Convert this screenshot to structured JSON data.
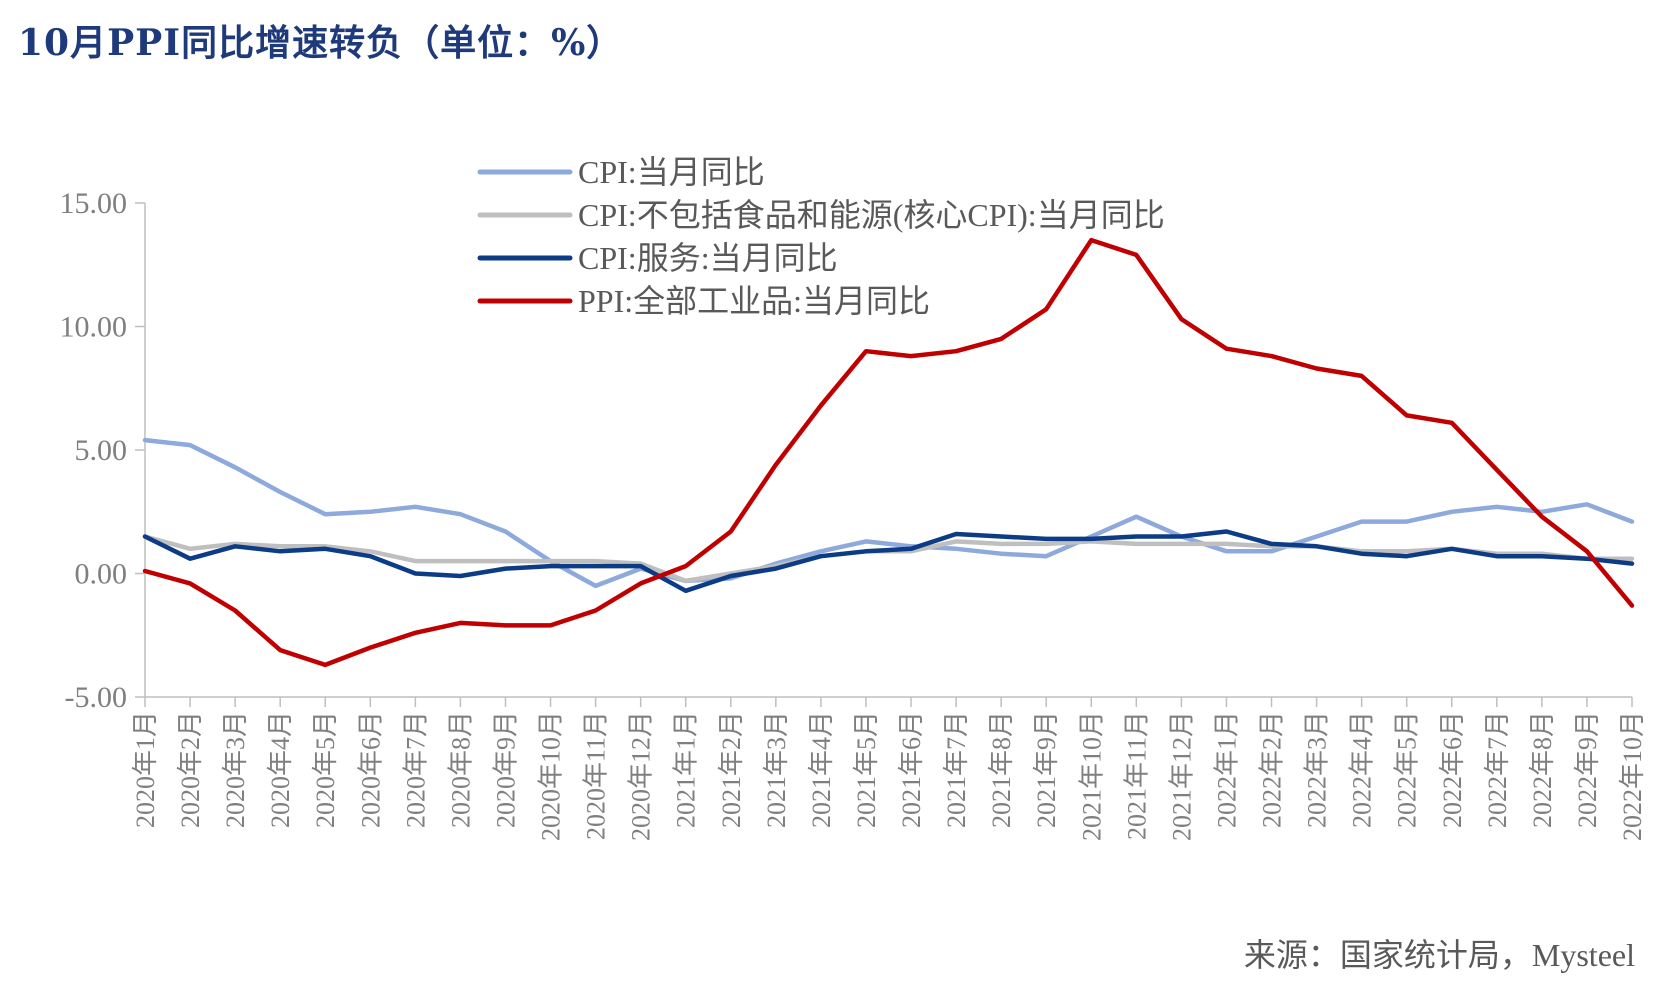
{
  "source": "来源：国家统计局，Mysteel",
  "chart_data": {
    "type": "line",
    "title": "10月PPI同比增速转负（单位：%）",
    "xlabel": "",
    "ylabel": "",
    "ylim": [
      -5,
      15
    ],
    "yticks": [
      -5,
      0,
      5,
      10,
      15
    ],
    "ytick_labels": [
      "-5.00",
      "0.00",
      "5.00",
      "10.00",
      "15.00"
    ],
    "grid": false,
    "legend_position": "top-center",
    "categories": [
      "2020年1月",
      "2020年2月",
      "2020年3月",
      "2020年4月",
      "2020年5月",
      "2020年6月",
      "2020年7月",
      "2020年8月",
      "2020年9月",
      "2020年10月",
      "2020年11月",
      "2020年12月",
      "2021年1月",
      "2021年2月",
      "2021年3月",
      "2021年4月",
      "2021年5月",
      "2021年6月",
      "2021年7月",
      "2021年8月",
      "2021年9月",
      "2021年10月",
      "2021年11月",
      "2021年12月",
      "2022年1月",
      "2022年2月",
      "2022年3月",
      "2022年4月",
      "2022年5月",
      "2022年6月",
      "2022年7月",
      "2022年8月",
      "2022年9月",
      "2022年10月"
    ],
    "series": [
      {
        "name": "CPI:当月同比",
        "color": "#8ea9db",
        "values": [
          5.4,
          5.2,
          4.3,
          3.3,
          2.4,
          2.5,
          2.7,
          2.4,
          1.7,
          0.5,
          -0.5,
          0.2,
          -0.3,
          -0.2,
          0.4,
          0.9,
          1.3,
          1.1,
          1.0,
          0.8,
          0.7,
          1.5,
          2.3,
          1.5,
          0.9,
          0.9,
          1.5,
          2.1,
          2.1,
          2.5,
          2.7,
          2.5,
          2.8,
          2.1
        ]
      },
      {
        "name": "CPI:不包括食品和能源(核心CPI):当月同比",
        "color": "#bfbfbf",
        "values": [
          1.5,
          1.0,
          1.2,
          1.1,
          1.1,
          0.9,
          0.5,
          0.5,
          0.5,
          0.5,
          0.5,
          0.4,
          -0.3,
          0.0,
          0.3,
          0.7,
          0.9,
          0.9,
          1.3,
          1.2,
          1.2,
          1.3,
          1.2,
          1.2,
          1.2,
          1.1,
          1.1,
          0.9,
          0.9,
          1.0,
          0.8,
          0.8,
          0.6,
          0.6
        ]
      },
      {
        "name": "CPI:服务:当月同比",
        "color": "#0d3c87",
        "values": [
          1.5,
          0.6,
          1.1,
          0.9,
          1.0,
          0.7,
          0.0,
          -0.1,
          0.2,
          0.3,
          0.3,
          0.3,
          -0.7,
          -0.1,
          0.2,
          0.7,
          0.9,
          1.0,
          1.6,
          1.5,
          1.4,
          1.4,
          1.5,
          1.5,
          1.7,
          1.2,
          1.1,
          0.8,
          0.7,
          1.0,
          0.7,
          0.7,
          0.6,
          0.4
        ]
      },
      {
        "name": "PPI:全部工业品:当月同比",
        "color": "#c00000",
        "values": [
          0.1,
          -0.4,
          -1.5,
          -3.1,
          -3.7,
          -3.0,
          -2.4,
          -2.0,
          -2.1,
          -2.1,
          -1.5,
          -0.4,
          0.3,
          1.7,
          4.4,
          6.8,
          9.0,
          8.8,
          9.0,
          9.5,
          10.7,
          13.5,
          12.9,
          10.3,
          9.1,
          8.8,
          8.3,
          8.0,
          6.4,
          6.1,
          4.2,
          2.3,
          0.9,
          -1.3
        ]
      }
    ]
  }
}
